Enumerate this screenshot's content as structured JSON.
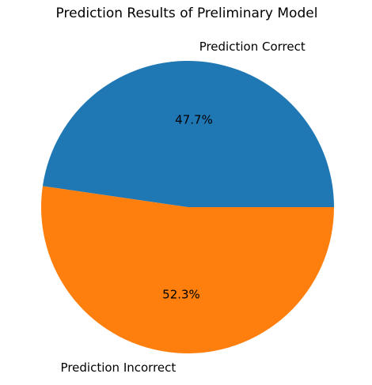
{
  "chart_data": {
    "type": "pie",
    "title": "Prediction Results of Preliminary Model",
    "slices": [
      {
        "label": "Prediction Correct",
        "percent_label": "47.7%",
        "value": 47.7,
        "color": "#1f77b4"
      },
      {
        "label": "Prediction Incorrect",
        "percent_label": "52.3%",
        "value": 52.3,
        "color": "#ff7f0e"
      }
    ]
  }
}
